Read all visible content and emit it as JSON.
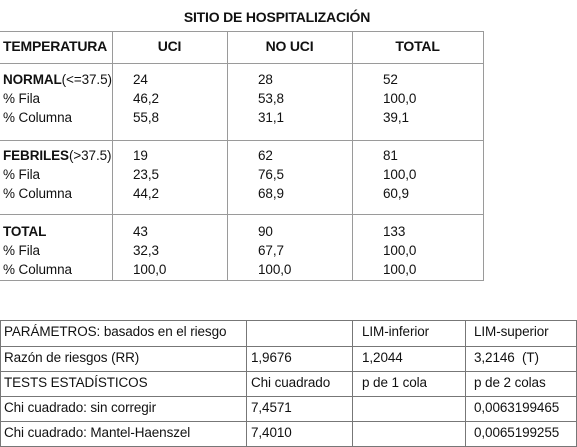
{
  "crosstab": {
    "title": "SITIO DE HOSPITALIZACIÓN",
    "headers": [
      "TEMPERATURA",
      "UCI",
      "NO UCI",
      "TOTAL"
    ],
    "groups": [
      {
        "label": "NORMAL",
        "suffix": "(<=37.5)",
        "rows": [
          {
            "label": "",
            "values": [
              "24",
              "28",
              "52"
            ]
          },
          {
            "label": "% Fila",
            "values": [
              "46,2",
              "53,8",
              "100,0"
            ]
          },
          {
            "label": "% Columna",
            "values": [
              "55,8",
              "31,1",
              "39,1"
            ]
          }
        ]
      },
      {
        "label": "FEBRILES",
        "suffix": "(>37.5)",
        "rows": [
          {
            "label": "",
            "values": [
              "19",
              "62",
              "81"
            ]
          },
          {
            "label": "% Fila",
            "values": [
              "23,5",
              "76,5",
              "100,0"
            ]
          },
          {
            "label": "% Columna",
            "values": [
              "44,2",
              "68,9",
              "60,9"
            ]
          }
        ]
      },
      {
        "label": "TOTAL",
        "suffix": "",
        "rows": [
          {
            "label": "",
            "values": [
              "43",
              "90",
              "133"
            ]
          },
          {
            "label": "% Fila",
            "values": [
              "32,3",
              "67,7",
              "100,0"
            ]
          },
          {
            "label": "% Columna",
            "values": [
              "100,0",
              "100,0",
              "100,0"
            ]
          }
        ]
      }
    ]
  },
  "stats": {
    "rows": [
      [
        "PARÁMETROS: basados en el riesgo",
        "",
        "LIM-inferior",
        "LIM-superior"
      ],
      [
        "Razón de riesgos (RR)",
        "1,9676",
        "1,2044",
        "3,2146  (T)"
      ],
      [
        "TESTS ESTADÍSTICOS",
        "Chi cuadrado",
        "p de 1 cola",
        "p de 2 colas"
      ],
      [
        "Chi cuadrado: sin corregir",
        "7,4571",
        "",
        "0,0063199465"
      ],
      [
        "Chi cuadrado: Mantel-Haenszel",
        "7,4010",
        "",
        "0,0065199255"
      ]
    ]
  }
}
